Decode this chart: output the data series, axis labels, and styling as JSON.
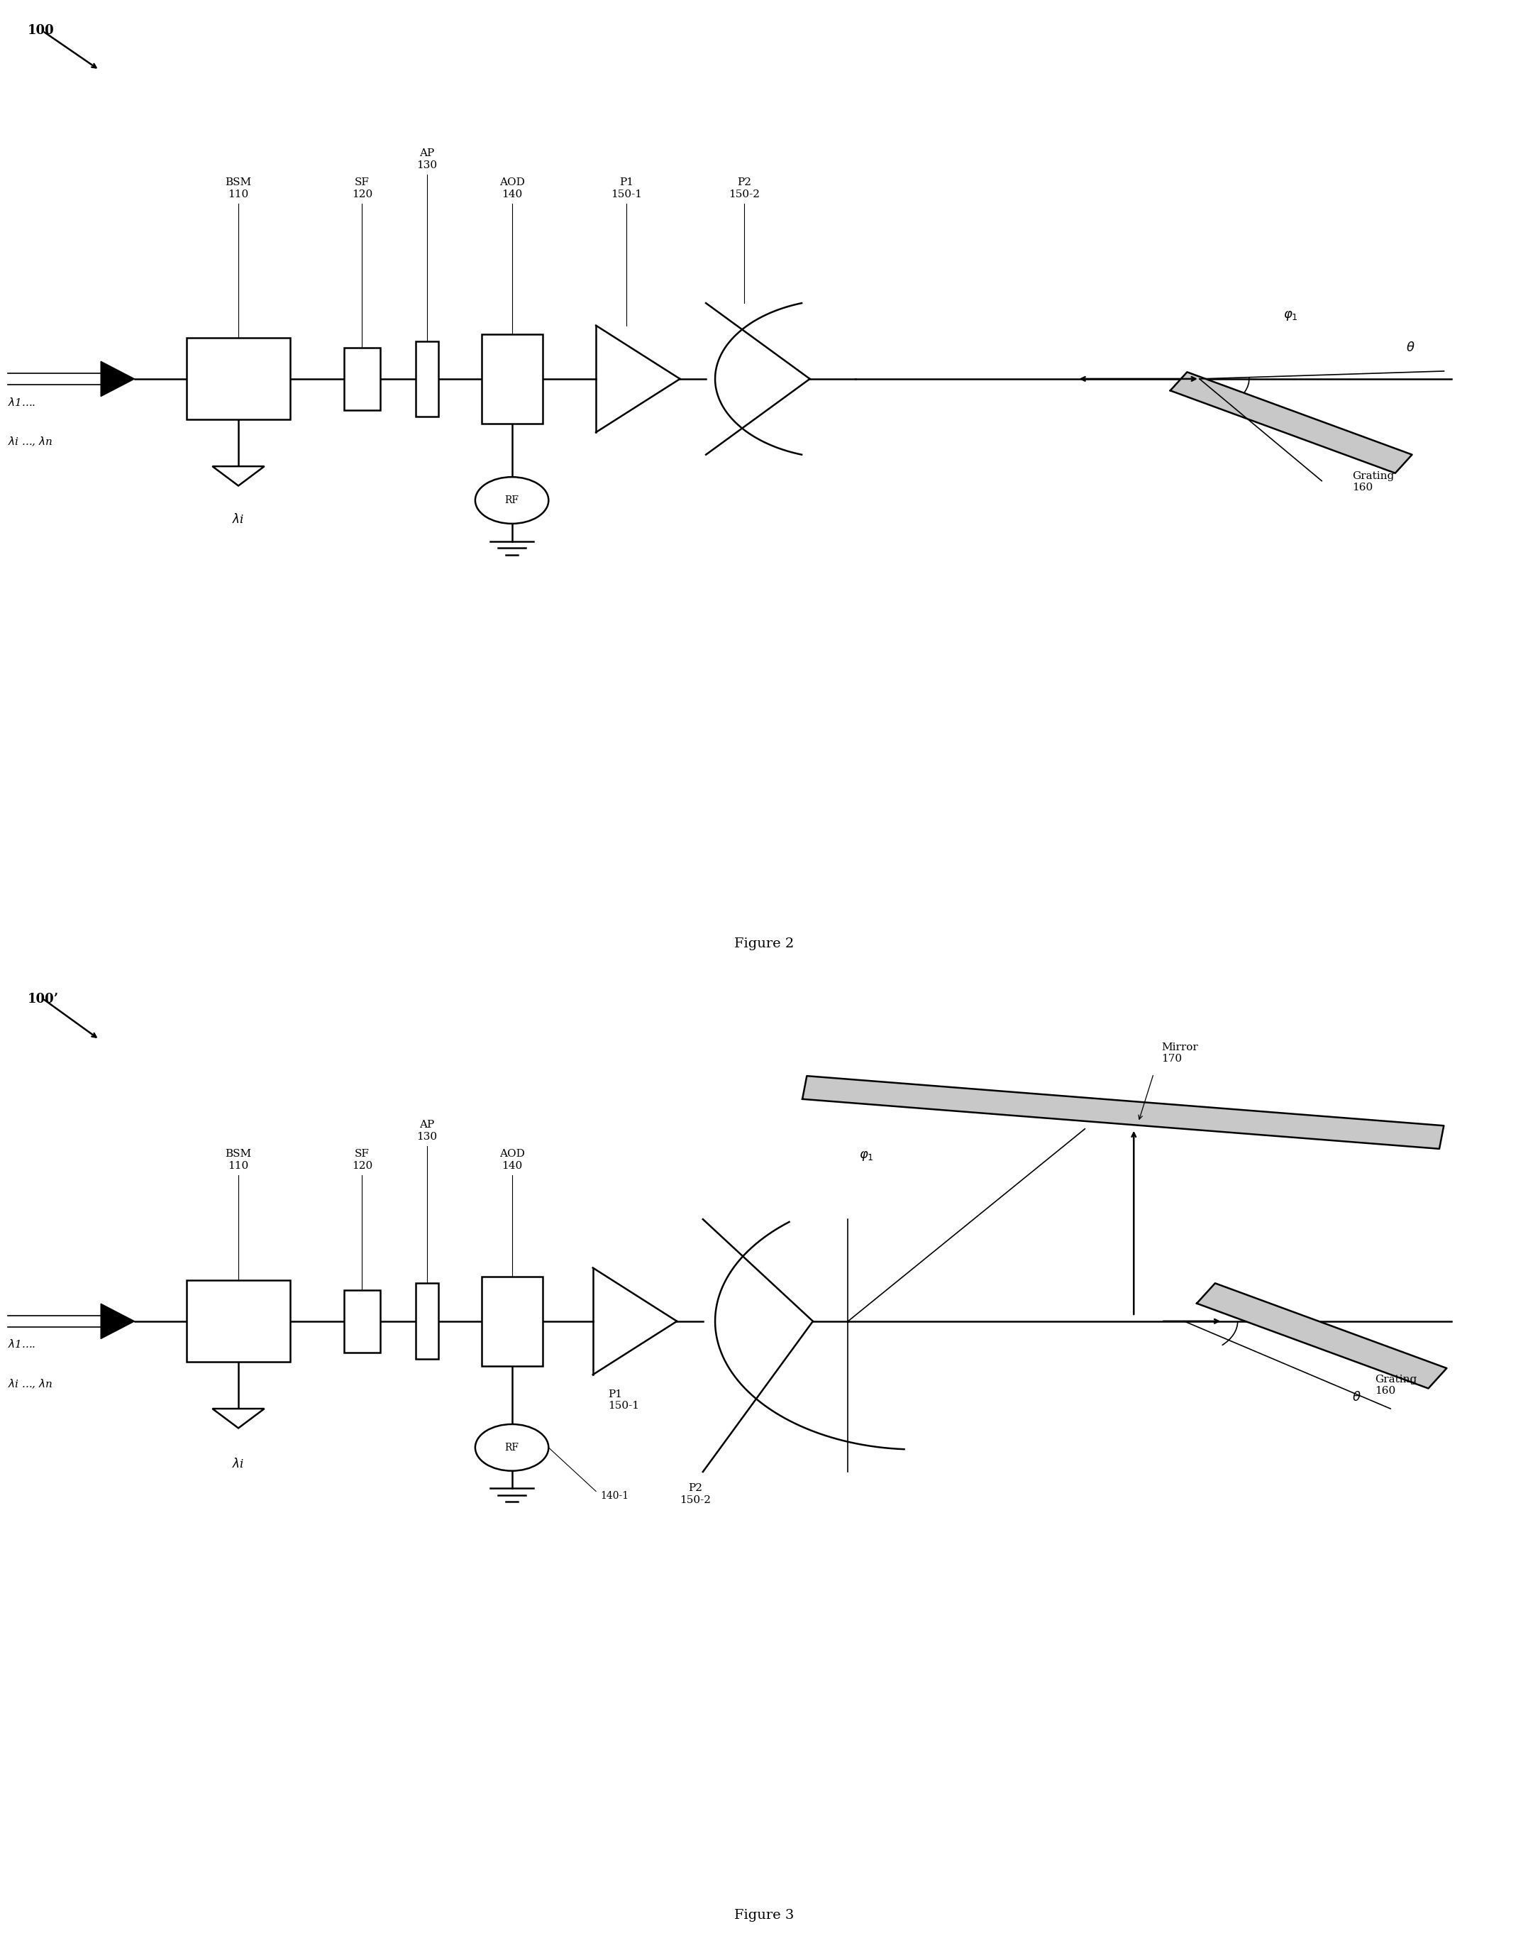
{
  "fig_width": 21.54,
  "fig_height": 27.38,
  "bg_color": "#ffffff",
  "line_color": "#000000",
  "font_family": "serif",
  "fig2_label": "100",
  "fig3_label": "100’",
  "figure2_caption": "Figure 2",
  "figure3_caption": "Figure 3",
  "lw": 1.8,
  "lw_thin": 1.2,
  "gray": "#c8c8c8"
}
